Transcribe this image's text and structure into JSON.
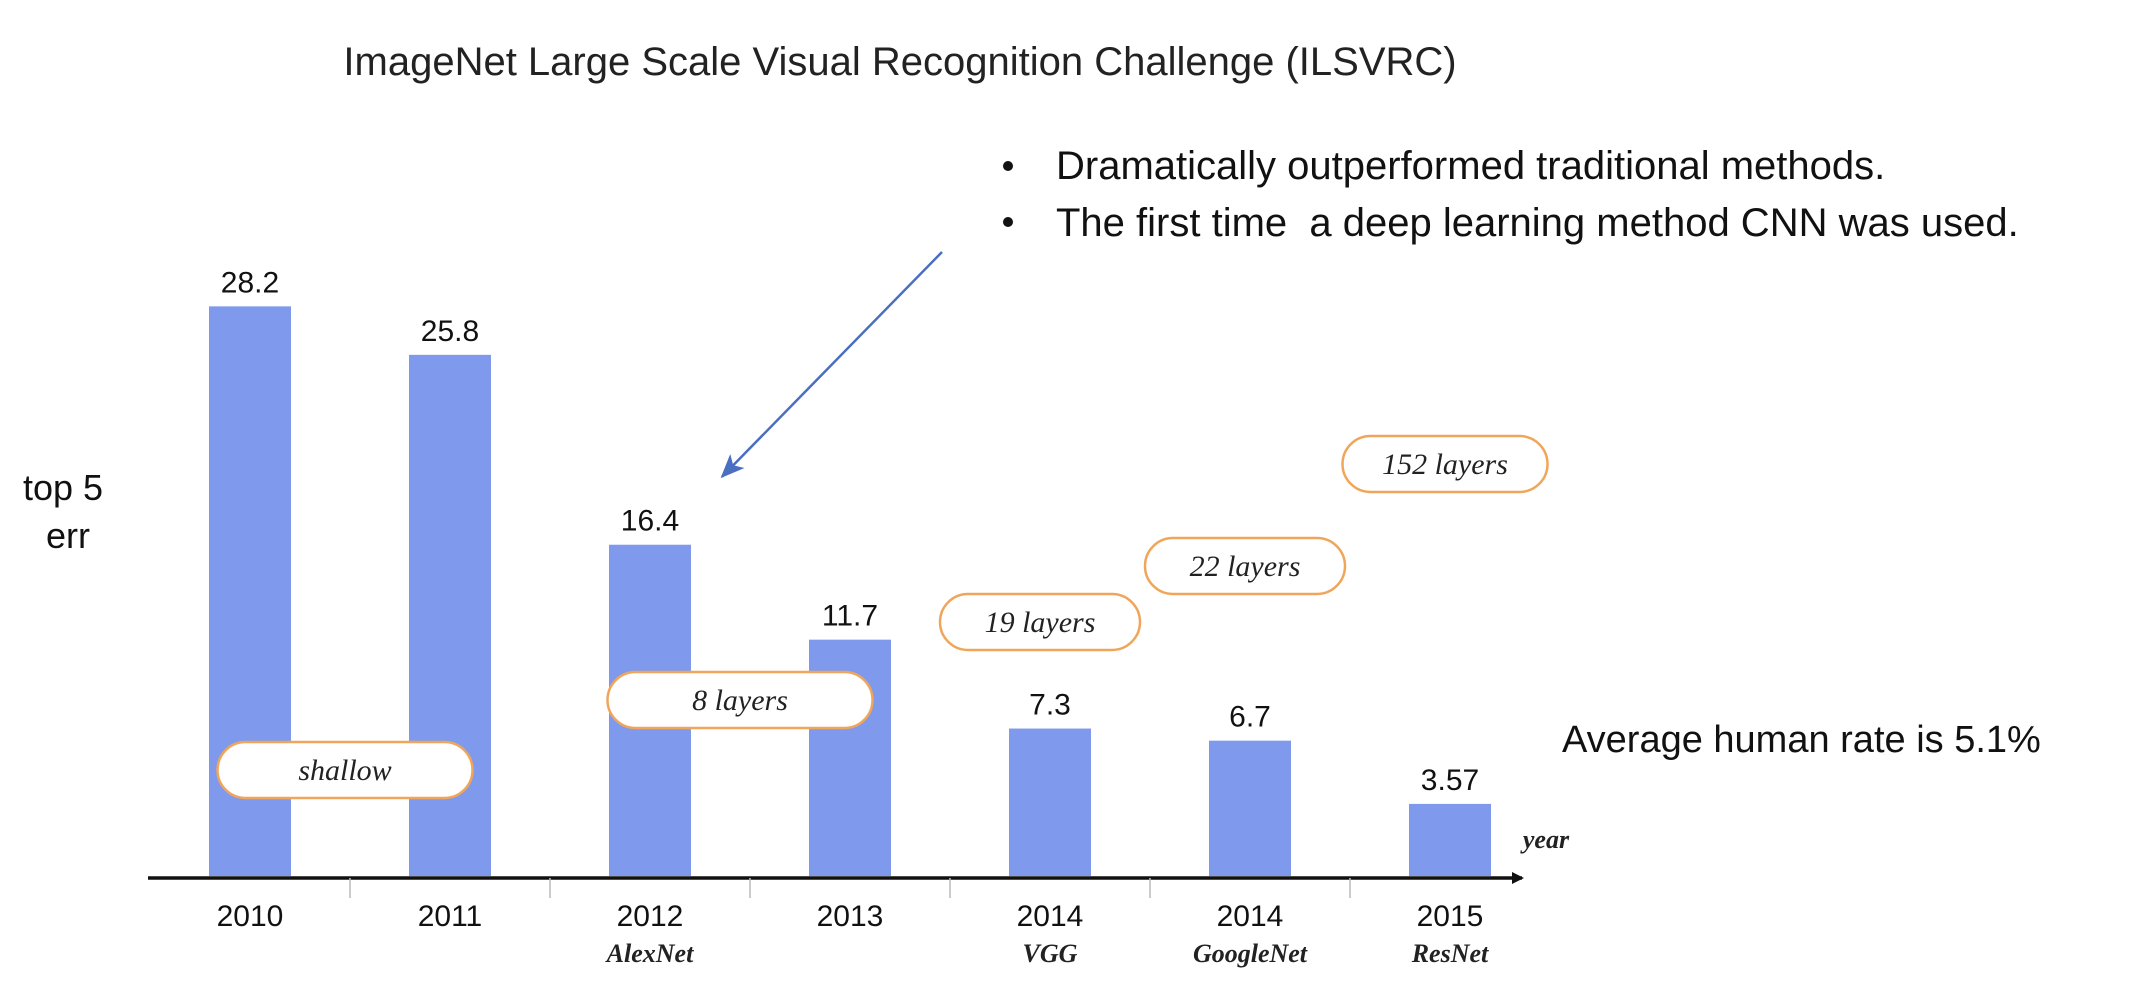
{
  "chart_data": {
    "type": "bar",
    "title": "ImageNet Large Scale Visual Recognition Challenge (ILSVRC)",
    "ylabel_lines": [
      "top 5",
      "err"
    ],
    "xlabel": "year",
    "categories": [
      "2010",
      "2011",
      "2012",
      "2013",
      "2014",
      "2014",
      "2015"
    ],
    "subcategories": [
      "",
      "",
      "AlexNet",
      "",
      "VGG",
      "GoogleNet",
      "ResNet"
    ],
    "values": [
      28.2,
      25.8,
      16.4,
      11.7,
      7.3,
      6.7,
      3.57
    ],
    "value_labels": [
      "28.2",
      "25.8",
      "16.4",
      "11.7",
      "7.3",
      "6.7",
      "3.57"
    ],
    "ylim": [
      0,
      30
    ],
    "bar_color": "#7f9aed",
    "badges": [
      {
        "text": "shallow",
        "category_index": 0
      },
      {
        "text": "8 layers",
        "category_index": 2
      },
      {
        "text": "19 layers",
        "category_index": 4
      },
      {
        "text": "22 layers",
        "category_index": 5
      },
      {
        "text": "152 layers",
        "category_index": 6
      }
    ],
    "badge_border_color": "#f0a65a",
    "annotation_bullets": [
      "Dramatically outperformed traditional methods.",
      "The first time  a deep learning method CNN was used."
    ],
    "annotation_arrow_target_index": 2,
    "arrow_color": "#4a6fc0",
    "human_rate_text": "Average human rate is 5.1%",
    "grid": false,
    "legend": "none"
  }
}
